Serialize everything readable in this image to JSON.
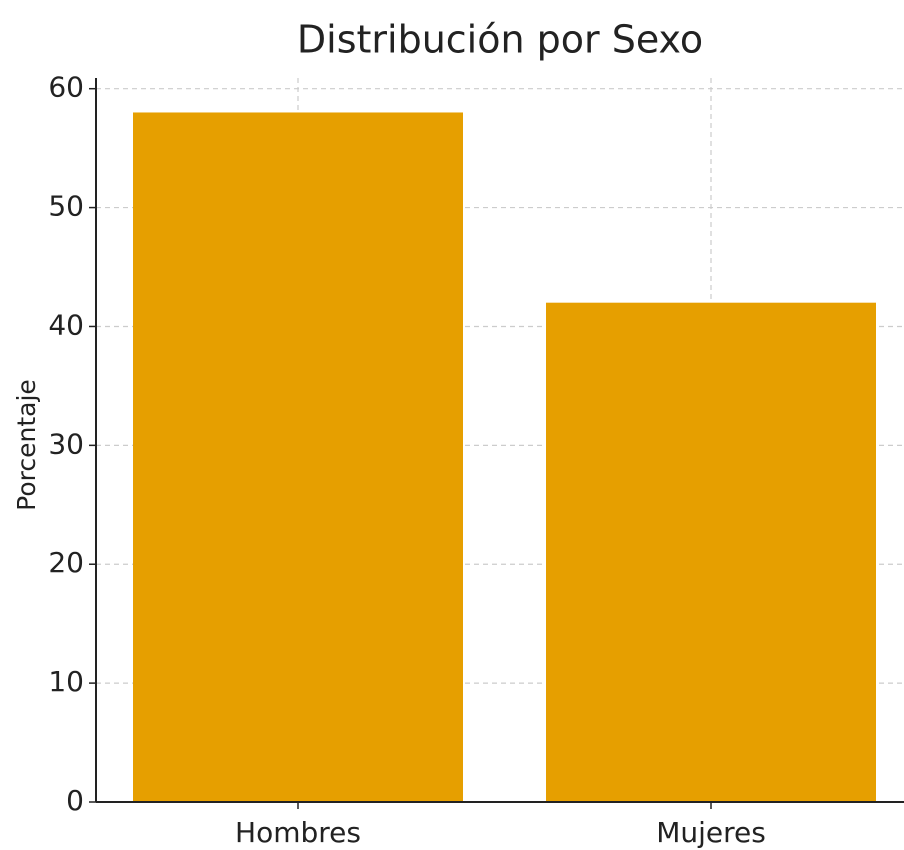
{
  "chart_data": {
    "type": "bar",
    "title": "Distribución por Sexo",
    "y_label": "Porcentaje",
    "categories": [
      "Hombres",
      "Mujeres"
    ],
    "values": [
      58,
      42
    ],
    "color": "#e69f00",
    "ylim": [
      0,
      60.9
    ],
    "yticks": [
      0,
      10,
      20,
      30,
      40,
      50,
      60
    ],
    "grid": true
  }
}
